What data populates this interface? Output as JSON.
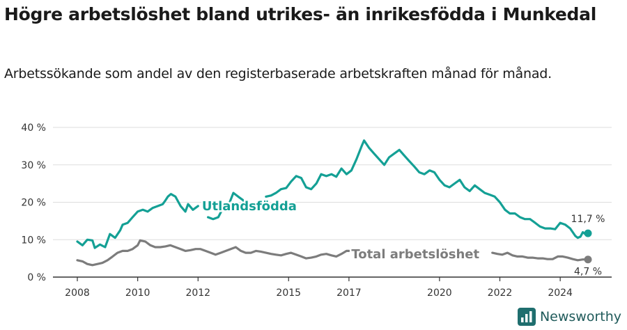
{
  "title": "Högre arbetslöshet bland utrikes- än inrikesfödda i Munkedal",
  "subtitle": "Arbetssökande som andel av den registerbaserade arbetskraften månad för månad.",
  "brand": {
    "name": "Newsworthy",
    "icon": "newsworthy-logo-icon"
  },
  "colors": {
    "utlandsfodda": "#14a095",
    "total": "#7c7c7c",
    "grid": "#dddddd",
    "axis": "#333333"
  },
  "chart_data": {
    "type": "line",
    "y_tick_labels": [
      "0 %",
      "10 %",
      "20 %",
      "30 %",
      "40 %"
    ],
    "y_ticks": [
      0,
      10,
      20,
      30,
      40
    ],
    "ylim": [
      0,
      40
    ],
    "x_tick_labels": [
      "2008",
      "2010",
      "2012",
      "2015",
      "2017",
      "2020",
      "2022",
      "2024"
    ],
    "x_ticks": [
      2008,
      2010,
      2012,
      2015,
      2017,
      2020,
      2022,
      2024
    ],
    "xlim": [
      2007.5,
      2025.3
    ],
    "series": [
      {
        "name": "Utlandsfödda",
        "color": "#14a095",
        "end_label": "11,7 %",
        "points": [
          [
            2008.0,
            9.5
          ],
          [
            2008.17,
            8.5
          ],
          [
            2008.33,
            10.0
          ],
          [
            2008.5,
            9.8
          ],
          [
            2008.58,
            7.8
          ],
          [
            2008.75,
            8.7
          ],
          [
            2008.92,
            8.0
          ],
          [
            2009.08,
            11.5
          ],
          [
            2009.25,
            10.5
          ],
          [
            2009.42,
            12.5
          ],
          [
            2009.5,
            14.0
          ],
          [
            2009.67,
            14.5
          ],
          [
            2009.83,
            16.0
          ],
          [
            2010.0,
            17.5
          ],
          [
            2010.17,
            18.0
          ],
          [
            2010.33,
            17.5
          ],
          [
            2010.5,
            18.5
          ],
          [
            2010.67,
            19.0
          ],
          [
            2010.83,
            19.5
          ],
          [
            2010.92,
            20.5
          ],
          [
            2011.0,
            21.5
          ],
          [
            2011.1,
            22.2
          ],
          [
            2011.25,
            21.5
          ],
          [
            2011.42,
            19.0
          ],
          [
            2011.58,
            17.5
          ],
          [
            2011.67,
            19.5
          ],
          [
            2011.83,
            18.0
          ],
          [
            2012.0,
            19.0
          ]
        ],
        "segments_extra": [
          [
            [
              2012.33,
              16.0
            ],
            [
              2012.5,
              15.5
            ],
            [
              2012.67,
              16.0
            ],
            [
              2012.83,
              18.5
            ],
            [
              2013.0,
              19.0
            ],
            [
              2013.17,
              22.5
            ],
            [
              2013.33,
              21.5
            ],
            [
              2013.5,
              20.5
            ],
            [
              2013.58,
              18.5
            ]
          ],
          [
            [
              2014.25,
              21.5
            ],
            [
              2014.42,
              21.8
            ],
            [
              2014.58,
              22.5
            ],
            [
              2014.75,
              23.5
            ],
            [
              2014.92,
              23.8
            ],
            [
              2015.08,
              25.5
            ],
            [
              2015.25,
              27.0
            ],
            [
              2015.42,
              26.5
            ],
            [
              2015.58,
              24.0
            ],
            [
              2015.75,
              23.5
            ],
            [
              2015.92,
              25.0
            ],
            [
              2016.08,
              27.5
            ],
            [
              2016.25,
              27.0
            ],
            [
              2016.42,
              27.5
            ],
            [
              2016.58,
              26.8
            ],
            [
              2016.75,
              29.0
            ],
            [
              2016.92,
              27.5
            ],
            [
              2017.08,
              28.5
            ],
            [
              2017.25,
              31.5
            ],
            [
              2017.42,
              35.0
            ],
            [
              2017.5,
              36.5
            ],
            [
              2017.67,
              34.5
            ],
            [
              2017.83,
              33.0
            ],
            [
              2018.0,
              31.5
            ],
            [
              2018.17,
              30.0
            ],
            [
              2018.33,
              32.0
            ],
            [
              2018.5,
              33.0
            ],
            [
              2018.67,
              34.0
            ],
            [
              2018.83,
              32.5
            ],
            [
              2019.0,
              31.0
            ],
            [
              2019.17,
              29.5
            ],
            [
              2019.33,
              28.0
            ],
            [
              2019.5,
              27.5
            ],
            [
              2019.67,
              28.5
            ],
            [
              2019.83,
              28.0
            ],
            [
              2020.0,
              26.0
            ],
            [
              2020.17,
              24.5
            ],
            [
              2020.33,
              24.0
            ],
            [
              2020.5,
              25.0
            ],
            [
              2020.67,
              26.0
            ],
            [
              2020.83,
              24.0
            ],
            [
              2021.0,
              23.0
            ],
            [
              2021.17,
              24.5
            ],
            [
              2021.33,
              23.5
            ],
            [
              2021.5,
              22.5
            ],
            [
              2021.67,
              22.0
            ],
            [
              2021.83,
              21.5
            ],
            [
              2022.0,
              20.0
            ],
            [
              2022.17,
              18.0
            ],
            [
              2022.33,
              17.0
            ],
            [
              2022.5,
              17.0
            ],
            [
              2022.67,
              16.0
            ],
            [
              2022.83,
              15.5
            ],
            [
              2023.0,
              15.5
            ],
            [
              2023.17,
              14.5
            ],
            [
              2023.33,
              13.5
            ],
            [
              2023.5,
              13.0
            ],
            [
              2023.67,
              13.0
            ],
            [
              2023.83,
              12.8
            ],
            [
              2024.0,
              14.5
            ],
            [
              2024.17,
              14.0
            ],
            [
              2024.33,
              13.0
            ],
            [
              2024.5,
              11.0
            ],
            [
              2024.58,
              10.5
            ],
            [
              2024.67,
              10.8
            ],
            [
              2024.75,
              12.0
            ],
            [
              2024.83,
              11.5
            ],
            [
              2024.92,
              11.7
            ]
          ]
        ]
      },
      {
        "name": "Total arbetslöshet",
        "color": "#7c7c7c",
        "end_label": "4,7 %",
        "points": [
          [
            2008.0,
            4.5
          ],
          [
            2008.17,
            4.2
          ],
          [
            2008.33,
            3.5
          ],
          [
            2008.5,
            3.2
          ],
          [
            2008.67,
            3.5
          ],
          [
            2008.83,
            3.8
          ],
          [
            2009.0,
            4.5
          ],
          [
            2009.17,
            5.5
          ],
          [
            2009.33,
            6.5
          ],
          [
            2009.5,
            7.0
          ],
          [
            2009.67,
            7.0
          ],
          [
            2009.83,
            7.5
          ],
          [
            2010.0,
            8.5
          ],
          [
            2010.08,
            9.8
          ],
          [
            2010.25,
            9.5
          ],
          [
            2010.42,
            8.5
          ],
          [
            2010.58,
            8.0
          ],
          [
            2010.75,
            8.0
          ],
          [
            2010.92,
            8.2
          ],
          [
            2011.08,
            8.5
          ],
          [
            2011.25,
            8.0
          ],
          [
            2011.42,
            7.5
          ],
          [
            2011.58,
            7.0
          ],
          [
            2011.75,
            7.2
          ],
          [
            2011.92,
            7.5
          ],
          [
            2012.08,
            7.5
          ],
          [
            2012.25,
            7.0
          ],
          [
            2012.42,
            6.5
          ],
          [
            2012.58,
            6.0
          ],
          [
            2012.75,
            6.5
          ],
          [
            2012.92,
            7.0
          ],
          [
            2013.08,
            7.5
          ],
          [
            2013.25,
            8.0
          ],
          [
            2013.42,
            7.0
          ],
          [
            2013.58,
            6.5
          ],
          [
            2013.75,
            6.5
          ],
          [
            2013.92,
            7.0
          ],
          [
            2014.08,
            6.8
          ],
          [
            2014.25,
            6.5
          ],
          [
            2014.42,
            6.2
          ],
          [
            2014.58,
            6.0
          ],
          [
            2014.75,
            5.8
          ],
          [
            2014.92,
            6.2
          ],
          [
            2015.08,
            6.5
          ],
          [
            2015.25,
            6.0
          ],
          [
            2015.42,
            5.5
          ],
          [
            2015.58,
            5.0
          ],
          [
            2015.75,
            5.2
          ],
          [
            2015.92,
            5.5
          ],
          [
            2016.08,
            6.0
          ],
          [
            2016.25,
            6.2
          ],
          [
            2016.42,
            5.8
          ],
          [
            2016.58,
            5.5
          ],
          [
            2016.75,
            6.2
          ],
          [
            2016.92,
            7.0
          ],
          [
            2017.0,
            7.0
          ]
        ],
        "segments_extra": [
          [
            [
              2021.75,
              6.5
            ],
            [
              2021.92,
              6.2
            ],
            [
              2022.08,
              6.0
            ],
            [
              2022.25,
              6.5
            ],
            [
              2022.42,
              5.8
            ],
            [
              2022.58,
              5.5
            ],
            [
              2022.75,
              5.5
            ],
            [
              2022.92,
              5.2
            ],
            [
              2023.08,
              5.2
            ],
            [
              2023.25,
              5.0
            ],
            [
              2023.42,
              5.0
            ],
            [
              2023.58,
              4.8
            ],
            [
              2023.75,
              4.8
            ],
            [
              2023.92,
              5.5
            ],
            [
              2024.08,
              5.5
            ],
            [
              2024.25,
              5.2
            ],
            [
              2024.42,
              4.8
            ],
            [
              2024.58,
              4.5
            ],
            [
              2024.75,
              4.7
            ],
            [
              2024.92,
              4.7
            ]
          ]
        ]
      }
    ],
    "annotations": [
      {
        "text": "Utlandsfödda",
        "series": 0,
        "x": 2013.7,
        "y": 19.0
      },
      {
        "text": "Total arbetslöshet",
        "series": 1,
        "x": 2019.2,
        "y": 6.1
      }
    ]
  }
}
